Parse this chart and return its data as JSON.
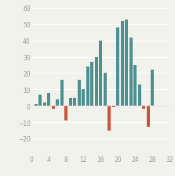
{
  "x": [
    1,
    2,
    3,
    4,
    5,
    6,
    7,
    8,
    9,
    10,
    11,
    12,
    13,
    14,
    15,
    16,
    17,
    18,
    19,
    20,
    21,
    22,
    23,
    24,
    25,
    26,
    27,
    28,
    29,
    30,
    31
  ],
  "values": [
    1,
    7,
    2,
    8,
    -2,
    4,
    16,
    -9,
    5,
    5,
    16,
    10,
    24,
    27,
    30,
    40,
    20,
    -15,
    -1,
    48,
    52,
    53,
    42,
    25,
    13,
    -2,
    -13,
    22,
    0,
    0,
    0
  ],
  "positive_color": "#4d9090",
  "negative_color": "#c8553a",
  "background_color": "#f2f2ed",
  "ylim": [
    -30,
    62
  ],
  "xlim": [
    0,
    32
  ],
  "xticks": [
    0,
    4,
    8,
    12,
    16,
    20,
    24,
    28,
    32
  ],
  "yticks": [
    -20,
    -10,
    0,
    10,
    20,
    30,
    40,
    50,
    60
  ],
  "bar_width": 0.75,
  "figsize": [
    2.23,
    2.26
  ],
  "dpi": 100
}
